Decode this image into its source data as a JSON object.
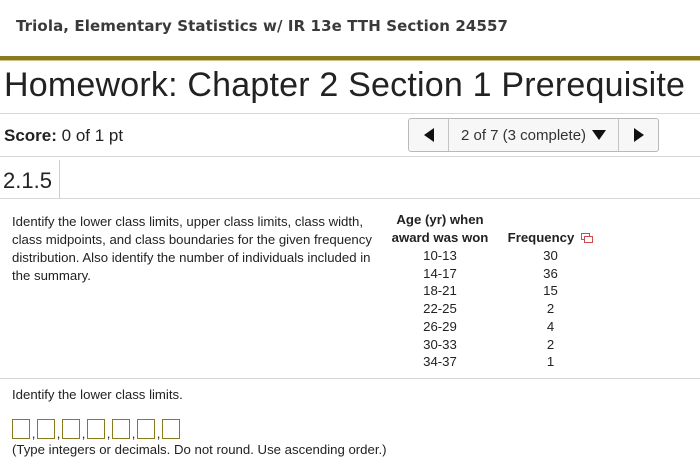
{
  "course": {
    "title": "Triola, Elementary Statistics w/ IR 13e TTH Section 24557"
  },
  "homework": {
    "title": "Homework: Chapter 2 Section 1 Prerequisite"
  },
  "score": {
    "label": "Score:",
    "value": "0 of 1 pt"
  },
  "navigator": {
    "position": "2 of 7 (3 complete)"
  },
  "question": {
    "number": "2.1.5",
    "prompt": "Identify the lower class limits, upper class limits, class width, class midpoints, and class boundaries for the given frequency distribution. Also identify the number of individuals included in the summary.",
    "table": {
      "headers": {
        "age_line1": "Age (yr) when",
        "age_line2": "award was won",
        "frequency": "Frequency"
      },
      "rows": [
        {
          "age": "10-13",
          "frequency": "30"
        },
        {
          "age": "14-17",
          "frequency": "36"
        },
        {
          "age": "18-21",
          "frequency": "15"
        },
        {
          "age": "22-25",
          "frequency": "2"
        },
        {
          "age": "26-29",
          "frequency": "4"
        },
        {
          "age": "30-33",
          "frequency": "2"
        },
        {
          "age": "34-37",
          "frequency": "1"
        }
      ]
    },
    "part_prompt": "Identify the lower class limits.",
    "answer_separator": ",",
    "answers": [
      "",
      "",
      "",
      "",
      "",
      "",
      ""
    ],
    "hint": "(Type integers or decimals. Do not round. Use ascending order.)"
  },
  "colors": {
    "accent_gold": "#8a7a1e",
    "copy_icon_red": "#c94b4b"
  }
}
